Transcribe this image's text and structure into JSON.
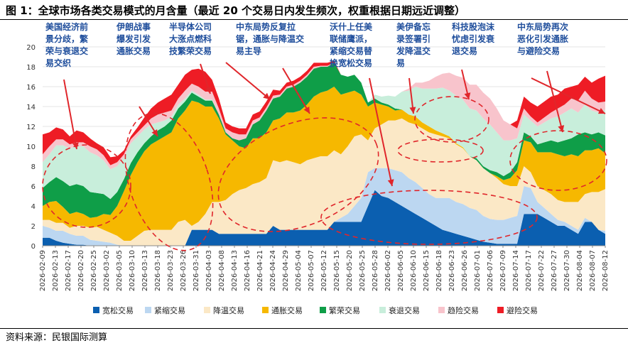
{
  "title": "图 1：全球市场各类交易模式的月含量（最近 20 个交易日内发生频次，权重根据日期远近调整）",
  "source": "资料来源：民银国际测算",
  "chart_data": {
    "type": "area",
    "stacked": true,
    "ylim": [
      0,
      20
    ],
    "yticks": [
      0,
      2,
      4,
      6,
      8,
      10,
      12,
      14,
      16,
      18,
      20
    ],
    "xticks": [
      "2026-02-09",
      "2026-02-13",
      "2026-02-17",
      "2026-02-20",
      "2026-02-25",
      "2026-03-02",
      "2026-03-05",
      "2026-03-10",
      "2026-03-13",
      "2026-03-18",
      "2026-03-23",
      "2026-03-26",
      "2026-03-31",
      "2026-04-03",
      "2026-04-08",
      "2026-04-13",
      "2026-04-16",
      "2026-04-21",
      "2026-04-24",
      "2026-04-29",
      "2026-05-04",
      "2026-05-07",
      "2026-05-12",
      "2026-05-15",
      "2026-05-20",
      "2026-05-25",
      "2026-05-28",
      "2026-06-02",
      "2026-06-05",
      "2026-06-10",
      "2026-06-15",
      "2026-06-18",
      "2026-06-23",
      "2026-06-26",
      "2026-07-01",
      "2026-07-06",
      "2026-07-09",
      "2026-07-14",
      "2026-07-17",
      "2026-07-22",
      "2026-07-27",
      "2026-07-30",
      "2026-08-04",
      "2026-08-07",
      "2026-08-12"
    ],
    "legend": [
      "宽松交易",
      "紧缩交易",
      "降温交易",
      "通胀交易",
      "繁荣交易",
      "衰退交易",
      "趋险交易",
      "避险交易"
    ],
    "legend_position": "bottom",
    "colors": [
      "#0b5fb0",
      "#bcd7f1",
      "#fbe8c6",
      "#f6b800",
      "#0f9e48",
      "#c8eedb",
      "#f8c4cc",
      "#ee1c25"
    ],
    "annotations": [
      {
        "lines": [
          "美国经济前",
          "景分歧，繁",
          "荣与衰退交",
          "易交织"
        ]
      },
      {
        "lines": [
          "伊朗战事",
          "爆发引发",
          "通胀交易"
        ]
      },
      {
        "lines": [
          "半导体公司",
          "大涨点燃科",
          "技繁荣交易"
        ]
      },
      {
        "lines": [
          "中东局势反复拉",
          "锯，通胀与降温交",
          "易主导"
        ]
      },
      {
        "lines": [
          "沃什上任美",
          "联储鹰派，",
          "紧缩交易替",
          "换宽松交易"
        ]
      },
      {
        "lines": [
          "美伊备忘",
          "录签署引",
          "发降温交",
          "易"
        ]
      },
      {
        "lines": [
          "科技股泡沫",
          "忧虑引发衰",
          "退交易"
        ]
      },
      {
        "lines": [
          "中东局势再次",
          "恶化引发通胀",
          "与避险交易"
        ]
      }
    ],
    "series": [
      {
        "name": "宽松交易",
        "values": [
          0.8,
          0.8,
          0.5,
          0.3,
          0.2,
          0.1,
          0.1,
          0,
          0,
          0,
          0,
          0,
          0,
          0,
          0,
          0,
          0,
          0,
          0,
          0,
          0,
          0,
          1.6,
          1.6,
          1.6,
          1.6,
          1.2,
          1.2,
          1.2,
          1.2,
          1.2,
          1.2,
          1.2,
          1.2,
          2.0,
          1.6,
          1.6,
          1.6,
          1.6,
          1.6,
          1.6,
          1.6,
          1.6,
          2.4,
          2.4,
          2.4,
          2.4,
          2.4,
          4.0,
          5.6,
          5.0,
          4.8,
          4.4,
          4.0,
          3.6,
          3.2,
          2.8,
          2.4,
          2.0,
          1.6,
          1.4,
          1.2,
          1.0,
          0.8,
          0.6,
          0.4,
          0.3,
          0.2,
          0.2,
          0.2,
          0.2,
          3.2,
          3.2,
          3.2,
          2.8,
          2.4,
          2.0,
          2.0,
          1.6,
          1.2,
          2.4,
          2.4,
          1.6,
          1.2
        ]
      },
      {
        "name": "紧缩交易",
        "values": [
          1.2,
          1.0,
          1.0,
          1.2,
          1.0,
          0.9,
          0.9,
          0.6,
          0.5,
          0.4,
          0.3,
          0.1,
          0,
          0,
          0,
          0,
          0,
          0,
          0,
          0,
          0,
          0,
          0,
          0,
          0,
          0,
          0,
          0,
          0,
          0,
          0,
          0,
          0,
          0,
          0,
          0,
          0,
          0,
          0,
          0,
          0,
          0,
          0,
          0,
          0.4,
          0.8,
          1.6,
          2.4,
          3.4,
          2.2,
          2.8,
          3.0,
          3.2,
          3.4,
          3.2,
          3.2,
          3.0,
          2.8,
          2.8,
          3.2,
          3.4,
          3.2,
          3.2,
          3.0,
          3.0,
          2.6,
          2.4,
          2.4,
          2.4,
          2.6,
          2.8,
          2.8,
          2.6,
          1.2,
          1.0,
          0.8,
          0.6,
          0.4,
          0.4,
          0.4,
          0.4,
          0,
          0,
          0.3
        ]
      },
      {
        "name": "降温交易",
        "values": [
          0.6,
          0.8,
          0.8,
          0.8,
          0.6,
          1.0,
          1.0,
          1.2,
          1.4,
          1.2,
          1.0,
          0.9,
          0.5,
          0.5,
          1.0,
          1.5,
          1.6,
          1.6,
          1.6,
          1.6,
          2.4,
          2.6,
          0.4,
          0.8,
          1.6,
          2.8,
          3.2,
          3.4,
          4.0,
          4.4,
          4.6,
          5.0,
          5.2,
          5.6,
          6.6,
          6.8,
          7.0,
          6.8,
          6.6,
          7.0,
          7.2,
          7.4,
          7.4,
          7.2,
          6.4,
          6.8,
          7.0,
          6.4,
          3.2,
          4.0,
          4.4,
          4.8,
          5.0,
          5.4,
          5.6,
          5.8,
          6.0,
          6.2,
          6.4,
          6.2,
          6.0,
          5.8,
          5.6,
          5.2,
          5.0,
          4.8,
          4.6,
          4.2,
          3.6,
          3.2,
          3.0,
          2.0,
          1.6,
          1.6,
          1.8,
          2.0,
          2.0,
          2.0,
          2.4,
          2.8,
          2.4,
          3.0,
          3.8,
          4.2
        ]
      },
      {
        "name": "通胀交易",
        "values": [
          1.4,
          1.8,
          2.2,
          1.6,
          1.4,
          1.4,
          1.2,
          1.0,
          1.0,
          1.6,
          1.8,
          3.0,
          5.0,
          6.6,
          7.4,
          8.0,
          8.6,
          9.0,
          9.4,
          9.8,
          10.4,
          11.0,
          12.6,
          12.0,
          10.8,
          9.6,
          8.4,
          6.6,
          5.4,
          4.4,
          4.0,
          4.6,
          4.4,
          4.6,
          4.0,
          4.4,
          4.8,
          5.0,
          5.4,
          5.6,
          6.2,
          6.4,
          6.6,
          6.4,
          6.0,
          5.4,
          4.6,
          4.0,
          3.4,
          2.6,
          2.0,
          1.4,
          1.0,
          0.9,
          0.8,
          0.8,
          0.6,
          0.6,
          0.4,
          0.3,
          0.2,
          0.1,
          0.1,
          0,
          0,
          0,
          0,
          0.2,
          0.4,
          0.8,
          1.6,
          2.6,
          3.0,
          3.4,
          3.8,
          4.2,
          4.6,
          4.6,
          4.8,
          4.6,
          4.4,
          4.2,
          4.4,
          3.6
        ]
      },
      {
        "name": "繁荣交易",
        "values": [
          1.8,
          2.0,
          2.4,
          2.6,
          2.8,
          2.8,
          2.8,
          2.6,
          2.4,
          2.0,
          1.6,
          1.4,
          1.2,
          1.2,
          1.0,
          0.8,
          0.8,
          1.0,
          1.0,
          1.2,
          1.0,
          0.9,
          0.8,
          0.6,
          0.6,
          0.6,
          0.4,
          0.2,
          0.2,
          0.6,
          1.0,
          1.4,
          1.8,
          2.2,
          2.2,
          2.2,
          2.4,
          2.6,
          2.8,
          2.8,
          2.8,
          2.6,
          2.4,
          2.4,
          2.0,
          1.6,
          1.6,
          1.2,
          0.4,
          0.4,
          0.2,
          0.2,
          0.2,
          0,
          0,
          0,
          0,
          0,
          0,
          0,
          0,
          0,
          0,
          0,
          0.2,
          0.2,
          0.3,
          0.4,
          0.4,
          0.6,
          0.8,
          0.8,
          0.6,
          0.8,
          1.0,
          1.2,
          1.2,
          1.6,
          1.6,
          2.2,
          1.8,
          1.6,
          1.6,
          1.8
        ]
      },
      {
        "name": "衰退交易",
        "values": [
          2.6,
          2.8,
          3.2,
          3.6,
          3.8,
          3.8,
          4.0,
          4.0,
          3.8,
          3.4,
          3.0,
          2.6,
          2.2,
          2.0,
          1.6,
          1.4,
          1.2,
          0.8,
          0.6,
          0.4,
          0.4,
          0.3,
          0.2,
          0.2,
          0.1,
          0.1,
          0,
          0,
          0,
          0,
          0,
          0,
          0,
          0,
          0,
          0,
          0,
          0,
          0,
          0,
          0,
          0,
          0,
          0,
          0,
          0,
          0,
          0,
          0,
          0.4,
          0.6,
          0.9,
          1.2,
          1.8,
          2.4,
          3.0,
          3.4,
          3.8,
          4.2,
          4.6,
          4.6,
          4.8,
          4.8,
          4.8,
          4.8,
          4.8,
          4.6,
          4.0,
          3.6,
          3.2,
          2.4,
          1.8,
          1.6,
          1.8,
          2.0,
          2.2,
          2.6,
          2.8,
          3.0,
          2.2,
          2.8,
          2.4,
          2.0,
          2.6
        ]
      },
      {
        "name": "趋险交易",
        "values": [
          0.8,
          0.8,
          0.6,
          0.6,
          0.4,
          0.4,
          0.4,
          0.6,
          0.6,
          0.5,
          0.4,
          0.4,
          0.3,
          0.4,
          0.4,
          0.4,
          0.6,
          0.8,
          0.8,
          0.6,
          0.6,
          0.8,
          0.7,
          0.8,
          0.8,
          0.8,
          0.6,
          0.4,
          0.6,
          0.6,
          0.4,
          0.4,
          0.3,
          0.3,
          0.3,
          0.2,
          0.2,
          0.2,
          0.2,
          0.2,
          0.2,
          0.1,
          0.1,
          0,
          0,
          0,
          0,
          0,
          0,
          0,
          0,
          0,
          0,
          0,
          0.2,
          0.4,
          0.6,
          0.8,
          1.2,
          1.4,
          1.8,
          2.0,
          2.2,
          2.4,
          2.6,
          2.6,
          2.6,
          2.4,
          2.0,
          1.6,
          1.0,
          0.6,
          0.4,
          0.4,
          0.5,
          0.6,
          0.8,
          0.8,
          1.0,
          1.2,
          1.4,
          1.2,
          1.0,
          0.8
        ]
      },
      {
        "name": "避险交易",
        "values": [
          2.0,
          1.4,
          1.2,
          1.0,
          0.8,
          1.2,
          1.0,
          0.8,
          0.6,
          0.8,
          0.8,
          0.6,
          0.4,
          0.3,
          0.5,
          0.8,
          1.0,
          1.2,
          1.4,
          1.6,
          1.4,
          1.6,
          1.4,
          1.8,
          2.0,
          1.2,
          1.0,
          0.6,
          0.6,
          0.6,
          0.6,
          0.6,
          0.6,
          0.6,
          0.6,
          0.4,
          0.4,
          0.4,
          0.4,
          0.4,
          0.4,
          0.3,
          0.3,
          0.2,
          0,
          0,
          0,
          0,
          0,
          0,
          0,
          0,
          0,
          0,
          0,
          0,
          0,
          0,
          0,
          0,
          0,
          0,
          0,
          0,
          0,
          0,
          0,
          0,
          0,
          0,
          0.8,
          1.2,
          1.4,
          1.6,
          1.6,
          1.6,
          1.4,
          1.6,
          1.2,
          1.6,
          1.4,
          1.6,
          2.4,
          2.6
        ]
      }
    ]
  }
}
